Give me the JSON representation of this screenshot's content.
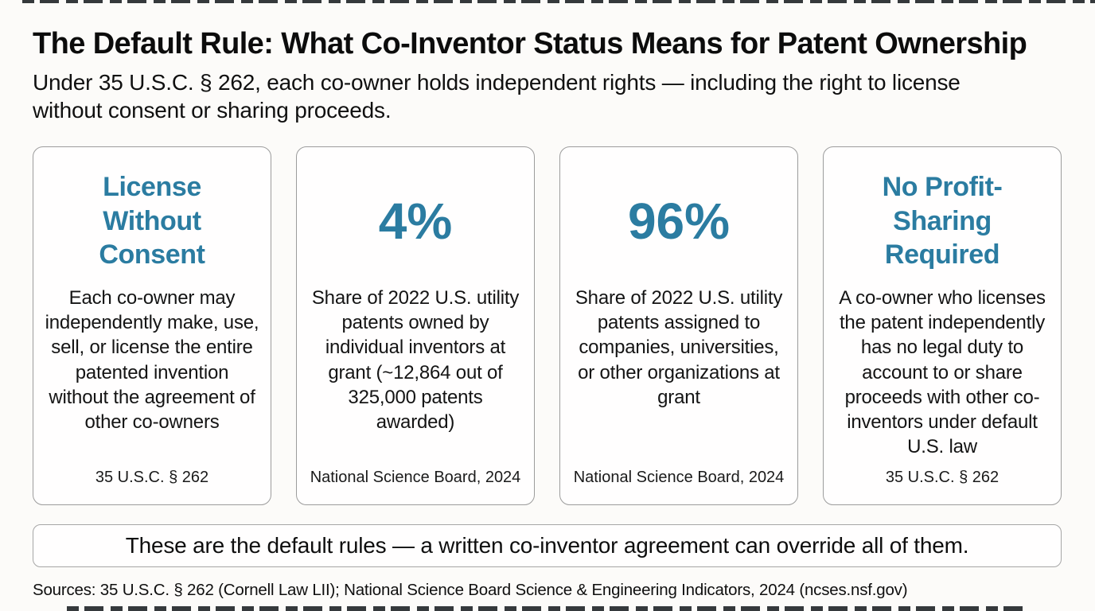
{
  "page": {
    "background": "#fcfbf9",
    "accent_color": "#2b7ca1",
    "text_color": "#111111"
  },
  "header": {
    "title": "The Default Rule: What Co-Inventor Status Means for Patent Ownership",
    "subtitle": "Under 35 U.S.C. § 262, each co-owner holds independent rights — including the right to license\nwithout consent or sharing proceeds."
  },
  "cards": [
    {
      "heading": "License\nWithout\nConsent",
      "body": "Each co-owner may independently make, use, sell, or license the entire patented invention without the agreement of other co-owners",
      "source": "35 U.S.C. § 262"
    },
    {
      "heading": "4%",
      "body": "Share of 2022 U.S. utility patents owned by individual inventors at grant (~12,864 out of 325,000 patents awarded)",
      "source": "National Science Board, 2024"
    },
    {
      "heading": "96%",
      "body": "Share of 2022 U.S. utility patents assigned to companies, universities, or other organizations at grant",
      "source": "National Science Board, 2024"
    },
    {
      "heading": "No Profit-\nSharing\nRequired",
      "body": "A co-owner who licenses the patent independently has no legal duty to account to or share proceeds with other co-inventors under default U.S. law",
      "source": "35 U.S.C. § 262"
    }
  ],
  "banner": {
    "text": "These are the default rules — a written co-inventor agreement can override all of them."
  },
  "footer": {
    "sources": "Sources: 35 U.S.C. § 262 (Cornell Law LII); National Science Board Science & Engineering Indicators, 2024 (ncses.nsf.gov)"
  }
}
